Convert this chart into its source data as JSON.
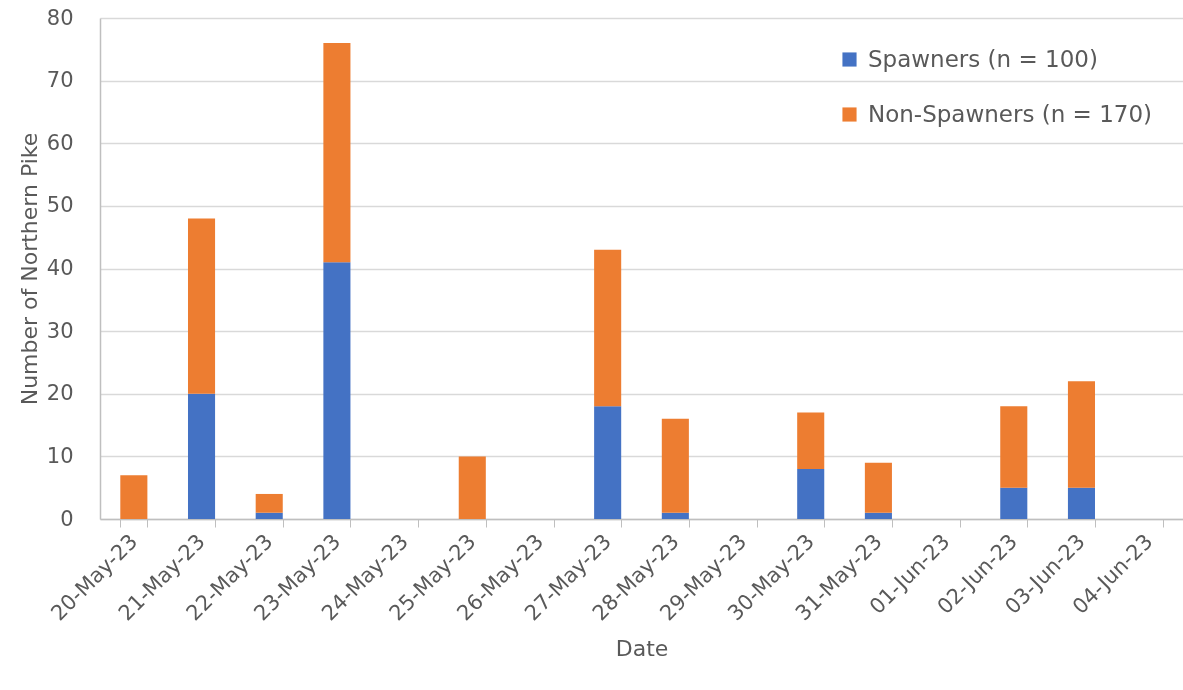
{
  "chart_data": {
    "type": "bar",
    "stacked": true,
    "xlabel": "Date",
    "ylabel": "Number of Northern Pike",
    "categories": [
      "20-May-23",
      "21-May-23",
      "22-May-23",
      "23-May-23",
      "24-May-23",
      "25-May-23",
      "26-May-23",
      "27-May-23",
      "28-May-23",
      "29-May-23",
      "30-May-23",
      "31-May-23",
      "01-Jun-23",
      "02-Jun-23",
      "03-Jun-23",
      "04-Jun-23"
    ],
    "series": [
      {
        "name": "Spawners (n = 100)",
        "color": "#4472c4",
        "values": [
          0,
          20,
          1,
          41,
          0,
          0,
          0,
          18,
          1,
          0,
          8,
          1,
          0,
          5,
          5,
          0
        ]
      },
      {
        "name": "Non-Spawners (n = 170)",
        "color": "#ed7d31",
        "values": [
          7,
          28,
          3,
          35,
          0,
          10,
          0,
          25,
          15,
          0,
          9,
          8,
          0,
          13,
          17,
          0
        ]
      }
    ],
    "ylim": [
      0,
      80
    ],
    "yticks": [
      0,
      10,
      20,
      30,
      40,
      50,
      60,
      70,
      80
    ],
    "grid": true,
    "legend": "top right"
  }
}
